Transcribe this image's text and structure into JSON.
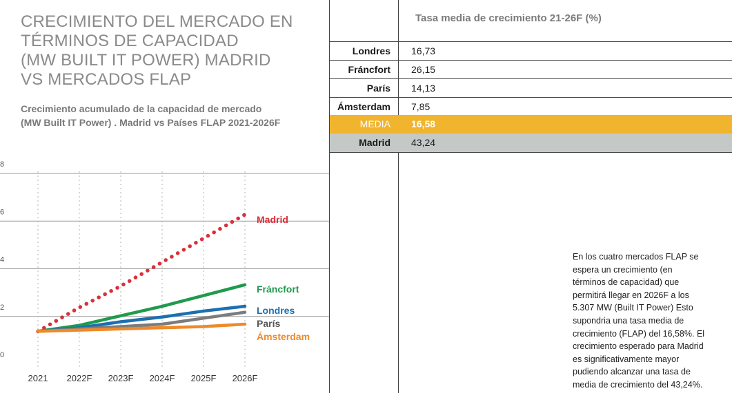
{
  "chart_title": [
    "CRECIMIENTO DEL MERCADO EN",
    "TÉRMINOS DE CAPACIDAD",
    "(MW BUILT IT POWER) MADRID",
    "VS MERCADOS FLAP"
  ],
  "chart_subtitle": [
    "Crecimiento acumulado de la capacidad de mercado",
    "(MW Built IT Power) . Madrid vs Países  FLAP 2021-2026F"
  ],
  "chart_data": {
    "type": "line",
    "title": "CRECIMIENTO DEL MERCADO EN TÉRMINOS DE CAPACIDAD (MW BUILT IT POWER) MADRID VS MERCADOS FLAP",
    "subtitle": "Crecimiento acumulado de la capacidad de mercado (MW Built IT Power) . Madrid vs Países  FLAP 2021-2026F",
    "x": [
      "2021",
      "2022F",
      "2023F",
      "2024F",
      "2025F",
      "2026F"
    ],
    "y_ticks": [
      "0",
      "2",
      "4",
      "6",
      "8"
    ],
    "ylim": [
      0,
      8
    ],
    "grid": true,
    "series": [
      {
        "name": "Madrid",
        "values": [
          1.0,
          2.0,
          2.9,
          3.9,
          4.9,
          5.9
        ],
        "color": "#d9303a",
        "style": "dotted"
      },
      {
        "name": "Fráncfort",
        "values": [
          1.0,
          1.25,
          1.65,
          2.05,
          2.5,
          2.95
        ],
        "color": "#1f9a4e",
        "style": "solid"
      },
      {
        "name": "Londres",
        "values": [
          1.0,
          1.15,
          1.4,
          1.6,
          1.85,
          2.05
        ],
        "color": "#1c6fb0",
        "style": "solid"
      },
      {
        "name": "París",
        "values": [
          1.0,
          1.1,
          1.2,
          1.3,
          1.55,
          1.8
        ],
        "color": "#7c7c7c",
        "style": "solid"
      },
      {
        "name": "Ámsterdam",
        "values": [
          1.0,
          1.05,
          1.1,
          1.15,
          1.2,
          1.3
        ],
        "color": "#ee8a2a",
        "style": "solid"
      }
    ]
  },
  "table": {
    "header": "Tasa media de crecimiento 21-26F (%)",
    "rows": [
      {
        "name": "Londres",
        "value": "16,73"
      },
      {
        "name": "Fráncfort",
        "value": "26,15"
      },
      {
        "name": "París",
        "value": "14,13"
      },
      {
        "name": "Ámsterdam",
        "value": "7,85"
      },
      {
        "name": "MEDIA",
        "value": "16,58"
      },
      {
        "name": "Madrid",
        "value": "43,24"
      }
    ],
    "colors": {
      "media": "#f0b42f",
      "madrid": "#c4c9c7"
    }
  },
  "note": [
    "En los cuatro mercados FLAP se",
    "espera un crecimiento (en",
    "términos de capacidad) que",
    "permitirá llegar en 2026F a los",
    "5.307 MW (Built IT Power) Esto",
    "supondria una tasa media de",
    "crecimiento (FLAP) del 16,58%. El",
    "crecimiento esperado para Madrid",
    "es significativamente mayor",
    "pudiendo alcanzar una tasa de",
    "media de crecimiento del 43,24%."
  ]
}
